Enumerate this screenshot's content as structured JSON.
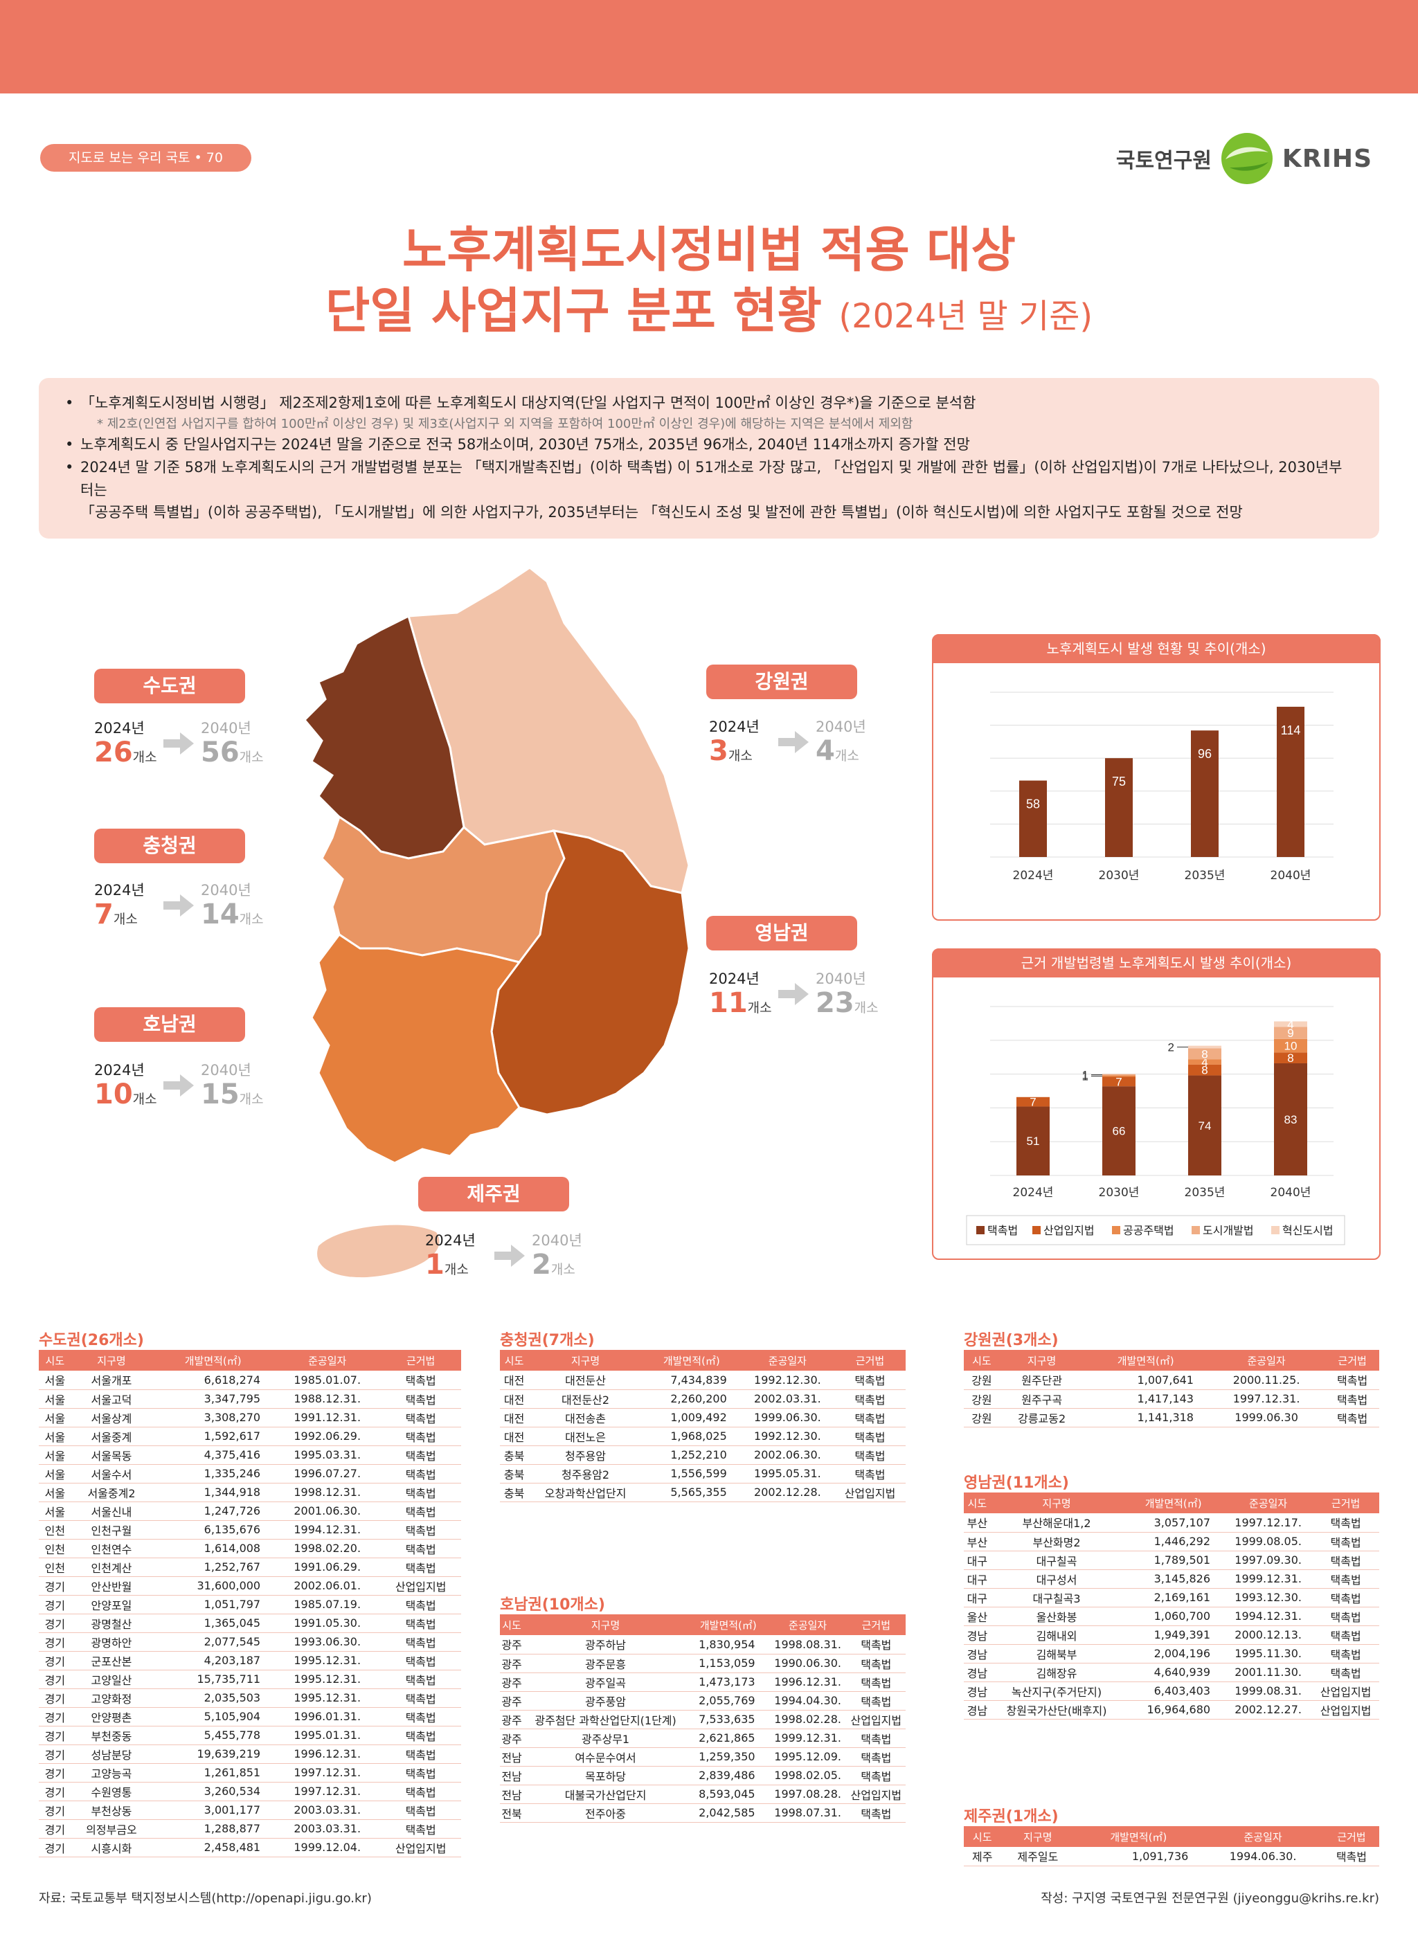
{
  "series_tag": "지도로 보는 우리 국토 • 70",
  "logo": {
    "kr": "국토연구원",
    "en": "KRIHS"
  },
  "title": {
    "line1": "노후계획도시정비법 적용 대상",
    "line2_main": "단일 사업지구 분포 현황",
    "line2_sub": "(2024년 말 기준)"
  },
  "summary": {
    "b1": "「노후계획도시정비법 시행령」 제2조제2항제1호에 따른 노후계획도시 대상지역(단일 사업지구 면적이 100만㎡ 이상인 경우*)을 기준으로 분석함",
    "note": "* 제2호(인연접 사업지구를 합하여 100만㎡ 이상인 경우) 및 제3호(사업지구 외 지역을 포함하여 100만㎡ 이상인 경우)에 해당하는 지역은 분석에서 제외함",
    "b2": "노후계획도시 중 단일사업지구는 2024년 말을 기준으로 전국 58개소이며, 2030년 75개소, 2035년 96개소, 2040년 114개소까지 증가할 전망",
    "b3a": "2024년 말 기준 58개 노후계획도시의 근거 개발법령별 분포는 「택지개발촉진법」(이하 택촉법) 이 51개소로 가장 많고, 「산업입지 및 개발에 관한 법률」(이하 산업입지법)이 7개로 나타났으나, 2030년부터는",
    "b3b": "「공공주택 특별법」(이하 공공주택법), 「도시개발법」에 의한 사업지구가, 2035년부터는 「혁신도시 조성 및 발전에 관한 특별법」(이하 혁신도시법)에 의한 사업지구도 포함될 것으로 전망"
  },
  "regions": [
    {
      "name": "수도권",
      "y1": "2024년",
      "v1": "26",
      "y2": "2040년",
      "v2": "56",
      "unit": "개소"
    },
    {
      "name": "충청권",
      "y1": "2024년",
      "v1": "7",
      "y2": "2040년",
      "v2": "14",
      "unit": "개소"
    },
    {
      "name": "호남권",
      "y1": "2024년",
      "v1": "10",
      "y2": "2040년",
      "v2": "15",
      "unit": "개소"
    },
    {
      "name": "강원권",
      "y1": "2024년",
      "v1": "3",
      "y2": "2040년",
      "v2": "4",
      "unit": "개소"
    },
    {
      "name": "영남권",
      "y1": "2024년",
      "v1": "11",
      "y2": "2040년",
      "v2": "23",
      "unit": "개소"
    },
    {
      "name": "제주권",
      "y1": "2024년",
      "v1": "1",
      "y2": "2040년",
      "v2": "2",
      "unit": "개소"
    }
  ],
  "map_colors": {
    "capital": "#7f3a1f",
    "gangwon": "#f2c3a9",
    "chungcheong": "#e99563",
    "yeongnam": "#b8531c",
    "honam": "#e57f3c",
    "jeju": "#f2c3a9"
  },
  "chart_data": [
    {
      "type": "bar",
      "title": "노후계획도시 발생 현황 및 추이(개소)",
      "categories": [
        "2024년",
        "2030년",
        "2035년",
        "2040년"
      ],
      "values": [
        58,
        75,
        96,
        114
      ],
      "ylim": [
        0,
        125
      ],
      "color": "#8c3b1c"
    },
    {
      "type": "bar",
      "stacked": true,
      "title": "근거 개발법령별 노후계획도시 발생 추이(개소)",
      "categories": [
        "2024년",
        "2030년",
        "2035년",
        "2040년"
      ],
      "series": [
        {
          "name": "택촉법",
          "values": [
            51,
            66,
            74,
            83
          ],
          "color": "#8c3b1c"
        },
        {
          "name": "산업입지법",
          "values": [
            7,
            7,
            8,
            8
          ],
          "color": "#cc5a1e"
        },
        {
          "name": "공공주택법",
          "values": [
            0,
            1,
            4,
            10
          ],
          "color": "#e98a4c"
        },
        {
          "name": "도시개발법",
          "values": [
            0,
            1,
            8,
            9
          ],
          "color": "#f0ad84"
        },
        {
          "name": "혁신도시법",
          "values": [
            0,
            0,
            2,
            4
          ],
          "color": "#f7d3bd"
        }
      ],
      "ylim": [
        0,
        125
      ]
    }
  ],
  "tables": {
    "headers": [
      "시도",
      "지구명",
      "개발면적(㎡)",
      "준공일자",
      "근거법"
    ],
    "capital": {
      "title": "수도권(26개소)",
      "rows": [
        [
          "서울",
          "서울개포",
          "6,618,274",
          "1985.01.07.",
          "택촉법"
        ],
        [
          "서울",
          "서울고덕",
          "3,347,795",
          "1988.12.31.",
          "택촉법"
        ],
        [
          "서울",
          "서울상계",
          "3,308,270",
          "1991.12.31.",
          "택촉법"
        ],
        [
          "서울",
          "서울중계",
          "1,592,617",
          "1992.06.29.",
          "택촉법"
        ],
        [
          "서울",
          "서울목동",
          "4,375,416",
          "1995.03.31.",
          "택촉법"
        ],
        [
          "서울",
          "서울수서",
          "1,335,246",
          "1996.07.27.",
          "택촉법"
        ],
        [
          "서울",
          "서울중계2",
          "1,344,918",
          "1998.12.31.",
          "택촉법"
        ],
        [
          "서울",
          "서울신내",
          "1,247,726",
          "2001.06.30.",
          "택촉법"
        ],
        [
          "인천",
          "인천구월",
          "6,135,676",
          "1994.12.31.",
          "택촉법"
        ],
        [
          "인천",
          "인천연수",
          "1,614,008",
          "1998.02.20.",
          "택촉법"
        ],
        [
          "인천",
          "인천계산",
          "1,252,767",
          "1991.06.29.",
          "택촉법"
        ],
        [
          "경기",
          "안산반월",
          "31,600,000",
          "2002.06.01.",
          "산업입지법"
        ],
        [
          "경기",
          "안양포일",
          "1,051,797",
          "1985.07.19.",
          "택촉법"
        ],
        [
          "경기",
          "광명철산",
          "1,365,045",
          "1991.05.30.",
          "택촉법"
        ],
        [
          "경기",
          "광명하안",
          "2,077,545",
          "1993.06.30.",
          "택촉법"
        ],
        [
          "경기",
          "군포산본",
          "4,203,187",
          "1995.12.31.",
          "택촉법"
        ],
        [
          "경기",
          "고양일산",
          "15,735,711",
          "1995.12.31.",
          "택촉법"
        ],
        [
          "경기",
          "고양화정",
          "2,035,503",
          "1995.12.31.",
          "택촉법"
        ],
        [
          "경기",
          "안양평촌",
          "5,105,904",
          "1996.01.31.",
          "택촉법"
        ],
        [
          "경기",
          "부천중동",
          "5,455,778",
          "1995.01.31.",
          "택촉법"
        ],
        [
          "경기",
          "성남분당",
          "19,639,219",
          "1996.12.31.",
          "택촉법"
        ],
        [
          "경기",
          "고양능곡",
          "1,261,851",
          "1997.12.31.",
          "택촉법"
        ],
        [
          "경기",
          "수원영통",
          "3,260,534",
          "1997.12.31.",
          "택촉법"
        ],
        [
          "경기",
          "부천상동",
          "3,001,177",
          "2003.03.31.",
          "택촉법"
        ],
        [
          "경기",
          "의정부금오",
          "1,288,877",
          "2003.03.31.",
          "택촉법"
        ],
        [
          "경기",
          "시흥시화",
          "2,458,481",
          "1999.12.04.",
          "산업입지법"
        ]
      ]
    },
    "chungcheong": {
      "title": "충청권(7개소)",
      "rows": [
        [
          "대전",
          "대전둔산",
          "7,434,839",
          "1992.12.30.",
          "택촉법"
        ],
        [
          "대전",
          "대전둔산2",
          "2,260,200",
          "2002.03.31.",
          "택촉법"
        ],
        [
          "대전",
          "대전송촌",
          "1,009,492",
          "1999.06.30.",
          "택촉법"
        ],
        [
          "대전",
          "대전노은",
          "1,968,025",
          "1992.12.30.",
          "택촉법"
        ],
        [
          "충북",
          "청주용암",
          "1,252,210",
          "2002.06.30.",
          "택촉법"
        ],
        [
          "충북",
          "청주용암2",
          "1,556,599",
          "1995.05.31.",
          "택촉법"
        ],
        [
          "충북",
          "오창과학산업단지",
          "5,565,355",
          "2002.12.28.",
          "산업입지법"
        ]
      ]
    },
    "honam": {
      "title": "호남권(10개소)",
      "rows": [
        [
          "광주",
          "광주하남",
          "1,830,954",
          "1998.08.31.",
          "택촉법"
        ],
        [
          "광주",
          "광주문흥",
          "1,153,059",
          "1990.06.30.",
          "택촉법"
        ],
        [
          "광주",
          "광주일곡",
          "1,473,173",
          "1996.12.31.",
          "택촉법"
        ],
        [
          "광주",
          "광주풍암",
          "2,055,769",
          "1994.04.30.",
          "택촉법"
        ],
        [
          "광주",
          "광주첨단 과학산업단지(1단계)",
          "7,533,635",
          "1998.02.28.",
          "산업입지법"
        ],
        [
          "광주",
          "광주상무1",
          "2,621,865",
          "1999.12.31.",
          "택촉법"
        ],
        [
          "전남",
          "여수문수여서",
          "1,259,350",
          "1995.12.09.",
          "택촉법"
        ],
        [
          "전남",
          "목포하당",
          "2,839,486",
          "1998.02.05.",
          "택촉법"
        ],
        [
          "전남",
          "대불국가산업단지",
          "8,593,045",
          "1997.08.28.",
          "산업입지법"
        ],
        [
          "전북",
          "전주아중",
          "2,042,585",
          "1998.07.31.",
          "택촉법"
        ]
      ]
    },
    "gangwon": {
      "title": "강원권(3개소)",
      "rows": [
        [
          "강원",
          "원주단관",
          "1,007,641",
          "2000.11.25.",
          "택촉법"
        ],
        [
          "강원",
          "원주구곡",
          "1,417,143",
          "1997.12.31.",
          "택촉법"
        ],
        [
          "강원",
          "강릉교동2",
          "1,141,318",
          "1999.06.30",
          "택촉법"
        ]
      ]
    },
    "yeongnam": {
      "title": "영남권(11개소)",
      "rows": [
        [
          "부산",
          "부산해운대1,2",
          "3,057,107",
          "1997.12.17.",
          "택촉법"
        ],
        [
          "부산",
          "부산화명2",
          "1,446,292",
          "1999.08.05.",
          "택촉법"
        ],
        [
          "대구",
          "대구칠곡",
          "1,789,501",
          "1997.09.30.",
          "택촉법"
        ],
        [
          "대구",
          "대구성서",
          "3,145,826",
          "1999.12.31.",
          "택촉법"
        ],
        [
          "대구",
          "대구칠곡3",
          "2,169,161",
          "1993.12.30.",
          "택촉법"
        ],
        [
          "울산",
          "울산화봉",
          "1,060,700",
          "1994.12.31.",
          "택촉법"
        ],
        [
          "경남",
          "김해내외",
          "1,949,391",
          "2000.12.13.",
          "택촉법"
        ],
        [
          "경남",
          "김해북부",
          "2,004,196",
          "1995.11.30.",
          "택촉법"
        ],
        [
          "경남",
          "김해장유",
          "4,640,939",
          "2001.11.30.",
          "택촉법"
        ],
        [
          "경남",
          "녹산지구(주거단지)",
          "6,403,403",
          "1999.08.31.",
          "산업입지법"
        ],
        [
          "경남",
          "창원국가산단(배후지)",
          "16,964,680",
          "2002.12.27.",
          "산업입지법"
        ]
      ]
    },
    "jeju": {
      "title": "제주권(1개소)",
      "rows": [
        [
          "제주",
          "제주일도",
          "1,091,736",
          "1994.06.30.",
          "택촉법"
        ]
      ]
    }
  },
  "footer": {
    "source": "자료: 국토교통부 택지정보시스템(http://openapi.jigu.go.kr)",
    "author": "작성: 구지영 국토연구원 전문연구원 (jiyeonggu@krihs.re.kr)"
  }
}
